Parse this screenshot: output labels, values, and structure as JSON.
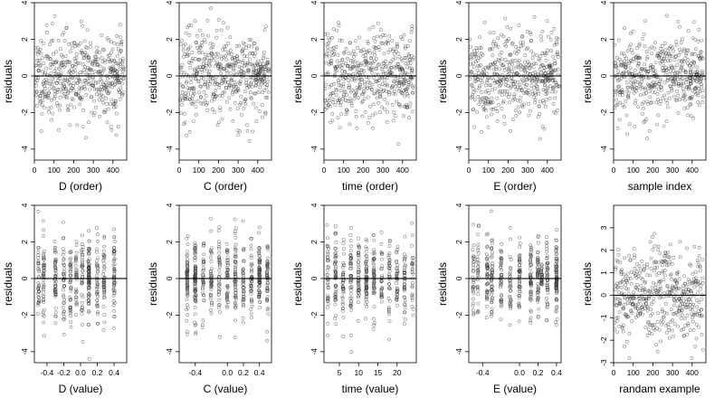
{
  "chart_data": [
    {
      "type": "scatter",
      "xlabel": "D (order)",
      "ylabel": "residuals",
      "xlim": [
        0,
        470
      ],
      "ylim": [
        -4.6,
        4
      ],
      "xticks": [
        "0",
        "100",
        "200",
        "300",
        "400"
      ],
      "yticks": [
        "-4",
        "-2",
        "0",
        "2",
        "4"
      ],
      "reference_line_y": 0,
      "grid": false,
      "point_count": 470,
      "kind": "order",
      "seed": 11,
      "extra_clusters": []
    },
    {
      "type": "scatter",
      "xlabel": "C (order)",
      "ylabel": "residuals",
      "xlim": [
        0,
        470
      ],
      "ylim": [
        -4.6,
        4
      ],
      "xticks": [
        "0",
        "100",
        "200",
        "300",
        "400"
      ],
      "yticks": [
        "-4",
        "-2",
        "0",
        "2",
        "4"
      ],
      "reference_line_y": 0,
      "grid": false,
      "point_count": 470,
      "kind": "order",
      "seed": 23,
      "extra_clusters": []
    },
    {
      "type": "scatter",
      "xlabel": "time (order)",
      "ylabel": "residuals",
      "xlim": [
        0,
        470
      ],
      "ylim": [
        -4.6,
        4
      ],
      "xticks": [
        "0",
        "100",
        "200",
        "300",
        "400"
      ],
      "yticks": [
        "-4",
        "-2",
        "0",
        "2",
        "4"
      ],
      "reference_line_y": 0,
      "grid": false,
      "point_count": 470,
      "kind": "order",
      "seed": 37,
      "extra_clusters": []
    },
    {
      "type": "scatter",
      "xlabel": "E (order)",
      "ylabel": "residuals",
      "xlim": [
        0,
        470
      ],
      "ylim": [
        -4.6,
        4
      ],
      "xticks": [
        "0",
        "100",
        "200",
        "300",
        "400"
      ],
      "yticks": [
        "-4",
        "-2",
        "0",
        "2",
        "4"
      ],
      "reference_line_y": 0,
      "grid": false,
      "point_count": 470,
      "kind": "order",
      "seed": 41,
      "extra_clusters": []
    },
    {
      "type": "scatter",
      "xlabel": "sample index",
      "ylabel": "residuals",
      "xlim": [
        0,
        470
      ],
      "ylim": [
        -4.6,
        4
      ],
      "xticks": [
        "0",
        "100",
        "200",
        "300",
        "400"
      ],
      "yticks": [
        "-4",
        "-2",
        "0",
        "2",
        "4"
      ],
      "reference_line_y": 0,
      "grid": false,
      "point_count": 470,
      "kind": "order",
      "seed": 53,
      "extra_clusters": []
    },
    {
      "type": "scatter",
      "xlabel": "D (value)",
      "ylabel": "residuals",
      "xlim": [
        -0.55,
        0.55
      ],
      "ylim": [
        -4.6,
        4
      ],
      "xticks": [
        "-0.4",
        "-0.2",
        "0.0",
        "0.2",
        "0.4"
      ],
      "xtick_values": [
        -0.4,
        -0.2,
        0,
        0.2,
        0.4
      ],
      "yticks": [
        "-4",
        "-2",
        "0",
        "2",
        "4"
      ],
      "reference_line_y": 0,
      "grid": false,
      "point_count": 470,
      "kind": "value",
      "seed": 61,
      "x_clusters": [
        -0.5,
        -0.44,
        -0.3,
        -0.2,
        -0.12,
        -0.05,
        0.02,
        0.1,
        0.2,
        0.28,
        0.4
      ],
      "extra_clusters": [
        0.1
      ]
    },
    {
      "type": "scatter",
      "xlabel": "C (value)",
      "ylabel": "residuals",
      "xlim": [
        -0.6,
        0.55
      ],
      "ylim": [
        -4.6,
        4
      ],
      "xticks": [
        "-0.4",
        "0.0",
        "0.2",
        "0.4"
      ],
      "xtick_values": [
        -0.4,
        0,
        0.2,
        0.4
      ],
      "yticks": [
        "-4",
        "-2",
        "0",
        "2",
        "4"
      ],
      "reference_line_y": 0,
      "grid": false,
      "point_count": 470,
      "kind": "value",
      "seed": 71,
      "x_clusters": [
        -0.5,
        -0.4,
        -0.3,
        -0.2,
        -0.1,
        0,
        0.1,
        0.2,
        0.3,
        0.4,
        0.5
      ],
      "extra_clusters": [
        -0.5,
        -0.4,
        0.4
      ]
    },
    {
      "type": "scatter",
      "xlabel": "time (value)",
      "ylabel": "residuals",
      "xlim": [
        1,
        25
      ],
      "ylim": [
        -4.6,
        4
      ],
      "xticks": [
        "5",
        "10",
        "15",
        "20"
      ],
      "xtick_values": [
        5,
        10,
        15,
        20
      ],
      "yticks": [
        "-4",
        "-2",
        "0",
        "2",
        "4"
      ],
      "reference_line_y": 0,
      "grid": false,
      "point_count": 470,
      "kind": "value",
      "seed": 83,
      "x_clusters": [
        2,
        4,
        6,
        8,
        10,
        12,
        14,
        16,
        18,
        20,
        22,
        24
      ],
      "extra_clusters": [
        12
      ]
    },
    {
      "type": "scatter",
      "xlabel": "E (value)",
      "ylabel": "residuals",
      "xlim": [
        -0.55,
        0.45
      ],
      "ylim": [
        -4.6,
        4
      ],
      "xticks": [
        "-0.4",
        "0.0",
        "0.2",
        "0.4"
      ],
      "xtick_values": [
        -0.4,
        0,
        0.2,
        0.4
      ],
      "yticks": [
        "-4",
        "-2",
        "0",
        "2",
        "4"
      ],
      "reference_line_y": 0,
      "grid": false,
      "point_count": 470,
      "kind": "value",
      "seed": 97,
      "x_clusters": [
        -0.5,
        -0.45,
        -0.35,
        -0.3,
        -0.2,
        -0.1,
        0,
        0.12,
        0.2,
        0.3,
        0.4
      ],
      "extra_clusters": [
        0.24,
        0.4
      ]
    },
    {
      "type": "scatter",
      "xlabel": "randam example",
      "ylabel": "residuals",
      "xlim": [
        0,
        470
      ],
      "ylim": [
        -3,
        4
      ],
      "xticks": [
        "0",
        "100",
        "200",
        "300",
        "400"
      ],
      "yticks": [
        "-3",
        "-2",
        "-1",
        "0",
        "1",
        "2",
        "3"
      ],
      "reference_line_y": 0,
      "grid": false,
      "point_count": 470,
      "kind": "random",
      "seed": 109,
      "extra_clusters": []
    }
  ]
}
